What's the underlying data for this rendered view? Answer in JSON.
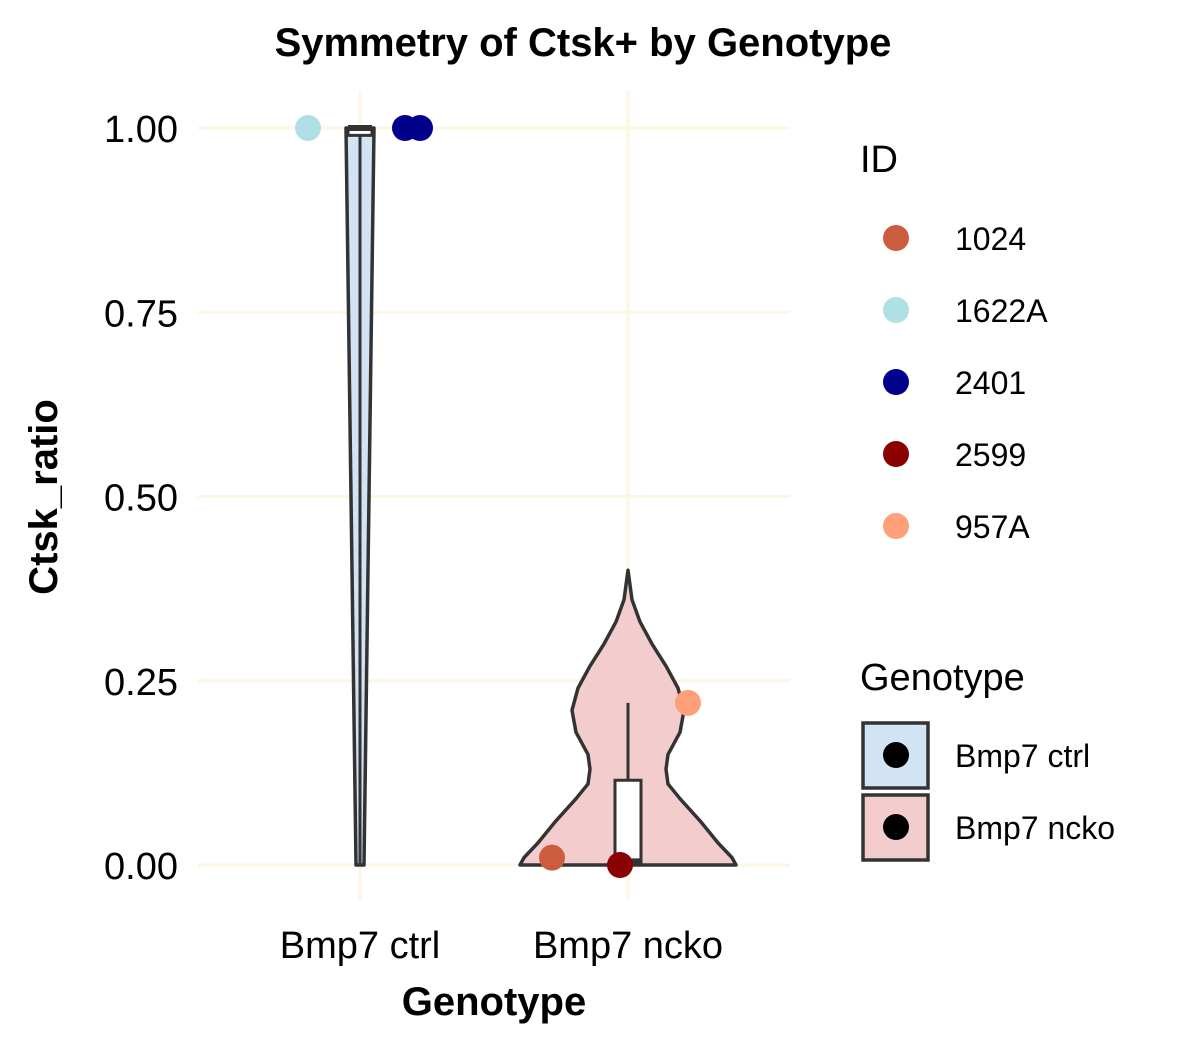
{
  "chart_data": {
    "type": "violin",
    "title": "Symmetry of Ctsk+ by Genotype",
    "xlabel": "Genotype",
    "ylabel": "Ctsk_ratio",
    "categories": [
      "Bmp7 ctrl",
      "Bmp7 ncko"
    ],
    "ylim": [
      0,
      1
    ],
    "y_ticks": [
      "0.00",
      "0.25",
      "0.50",
      "0.75",
      "1.00"
    ],
    "grid": true,
    "colors": {
      "grid": "#fdf6e3",
      "outline": "#333333",
      "Bmp7 ctrl": "#d2e3f3",
      "Bmp7 ncko": "#f3cdcd"
    },
    "violins": [
      {
        "genotype": "Bmp7 ctrl",
        "y_min": 0.0,
        "y_max": 1.0
      },
      {
        "genotype": "Bmp7 ncko",
        "y_min": 0.0,
        "y_max": 0.4
      }
    ],
    "boxplots": [
      {
        "genotype": "Bmp7 ctrl",
        "min": 0.0,
        "q1": 0.99,
        "median": 1.0,
        "q3": 1.0,
        "max": 1.0
      },
      {
        "genotype": "Bmp7 ncko",
        "min": 0.0,
        "q1": 0.0,
        "median": 0.005,
        "q3": 0.115,
        "max": 0.22
      }
    ],
    "points": [
      {
        "genotype": "Bmp7 ctrl",
        "id": "1622A",
        "y": 1.0
      },
      {
        "genotype": "Bmp7 ctrl",
        "id": "2401",
        "y": 1.0
      },
      {
        "genotype": "Bmp7 ctrl",
        "id": "2401",
        "y": 1.0
      },
      {
        "genotype": "Bmp7 ncko",
        "id": "1024",
        "y": 0.01
      },
      {
        "genotype": "Bmp7 ncko",
        "id": "2599",
        "y": 0.0
      },
      {
        "genotype": "Bmp7 ncko",
        "id": "957A",
        "y": 0.22
      }
    ],
    "legend_id": {
      "title": "ID",
      "placement": "right",
      "items": [
        {
          "label": "1024",
          "color": "#cd5c3f"
        },
        {
          "label": "1622A",
          "color": "#b0dfe5"
        },
        {
          "label": "2401",
          "color": "#00008b"
        },
        {
          "label": "2599",
          "color": "#8b0000"
        },
        {
          "label": "957A",
          "color": "#ffa07a"
        }
      ]
    },
    "legend_genotype": {
      "title": "Genotype",
      "placement": "right",
      "items": [
        {
          "label": "Bmp7 ctrl",
          "color": "#d2e3f3"
        },
        {
          "label": "Bmp7 ncko",
          "color": "#f3cdcd"
        }
      ]
    }
  }
}
